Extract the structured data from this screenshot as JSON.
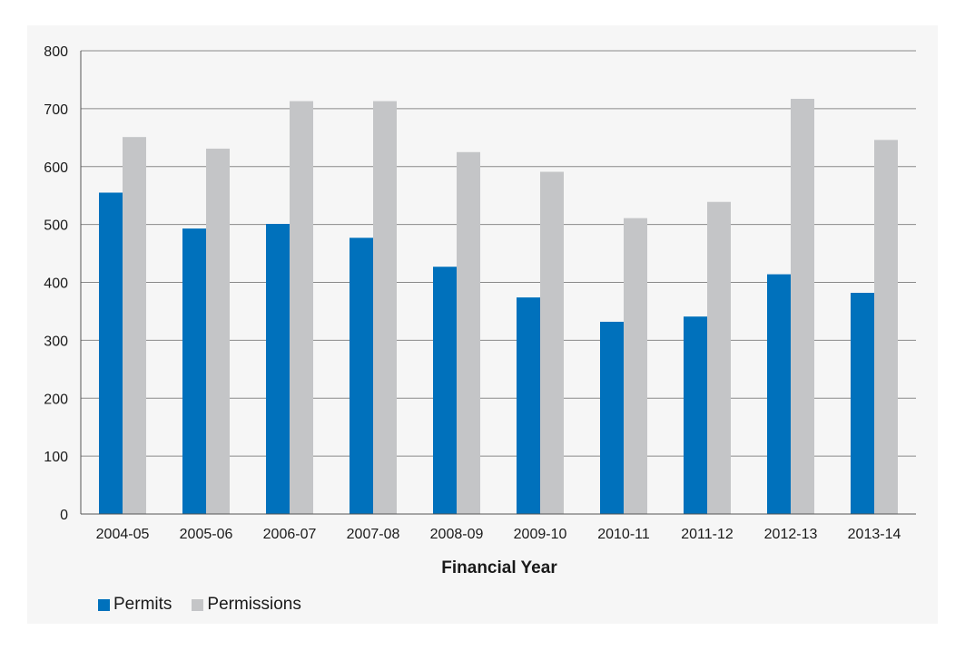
{
  "chart_data": {
    "type": "bar",
    "title": "",
    "xlabel": "Financial Year",
    "ylabel": "",
    "ylim": [
      0,
      800
    ],
    "yticks": [
      "0",
      "100",
      "200",
      "300",
      "400",
      "500",
      "600",
      "700",
      "800"
    ],
    "grid": true,
    "legend_position": "bottom-left",
    "categories": [
      "2004-05",
      "2005-06",
      "2006-07",
      "2007-08",
      "2008-09",
      "2009-10",
      "2010-11",
      "2011-12",
      "2012-13",
      "2013-14"
    ],
    "series": [
      {
        "name": "Permits",
        "color": "#0071bc",
        "values": [
          555,
          493,
          501,
          477,
          427,
          374,
          332,
          341,
          414,
          382
        ]
      },
      {
        "name": "Permissions",
        "color": "#c4c5c7",
        "values": [
          651,
          631,
          713,
          713,
          625,
          591,
          511,
          539,
          717,
          646
        ]
      }
    ]
  }
}
